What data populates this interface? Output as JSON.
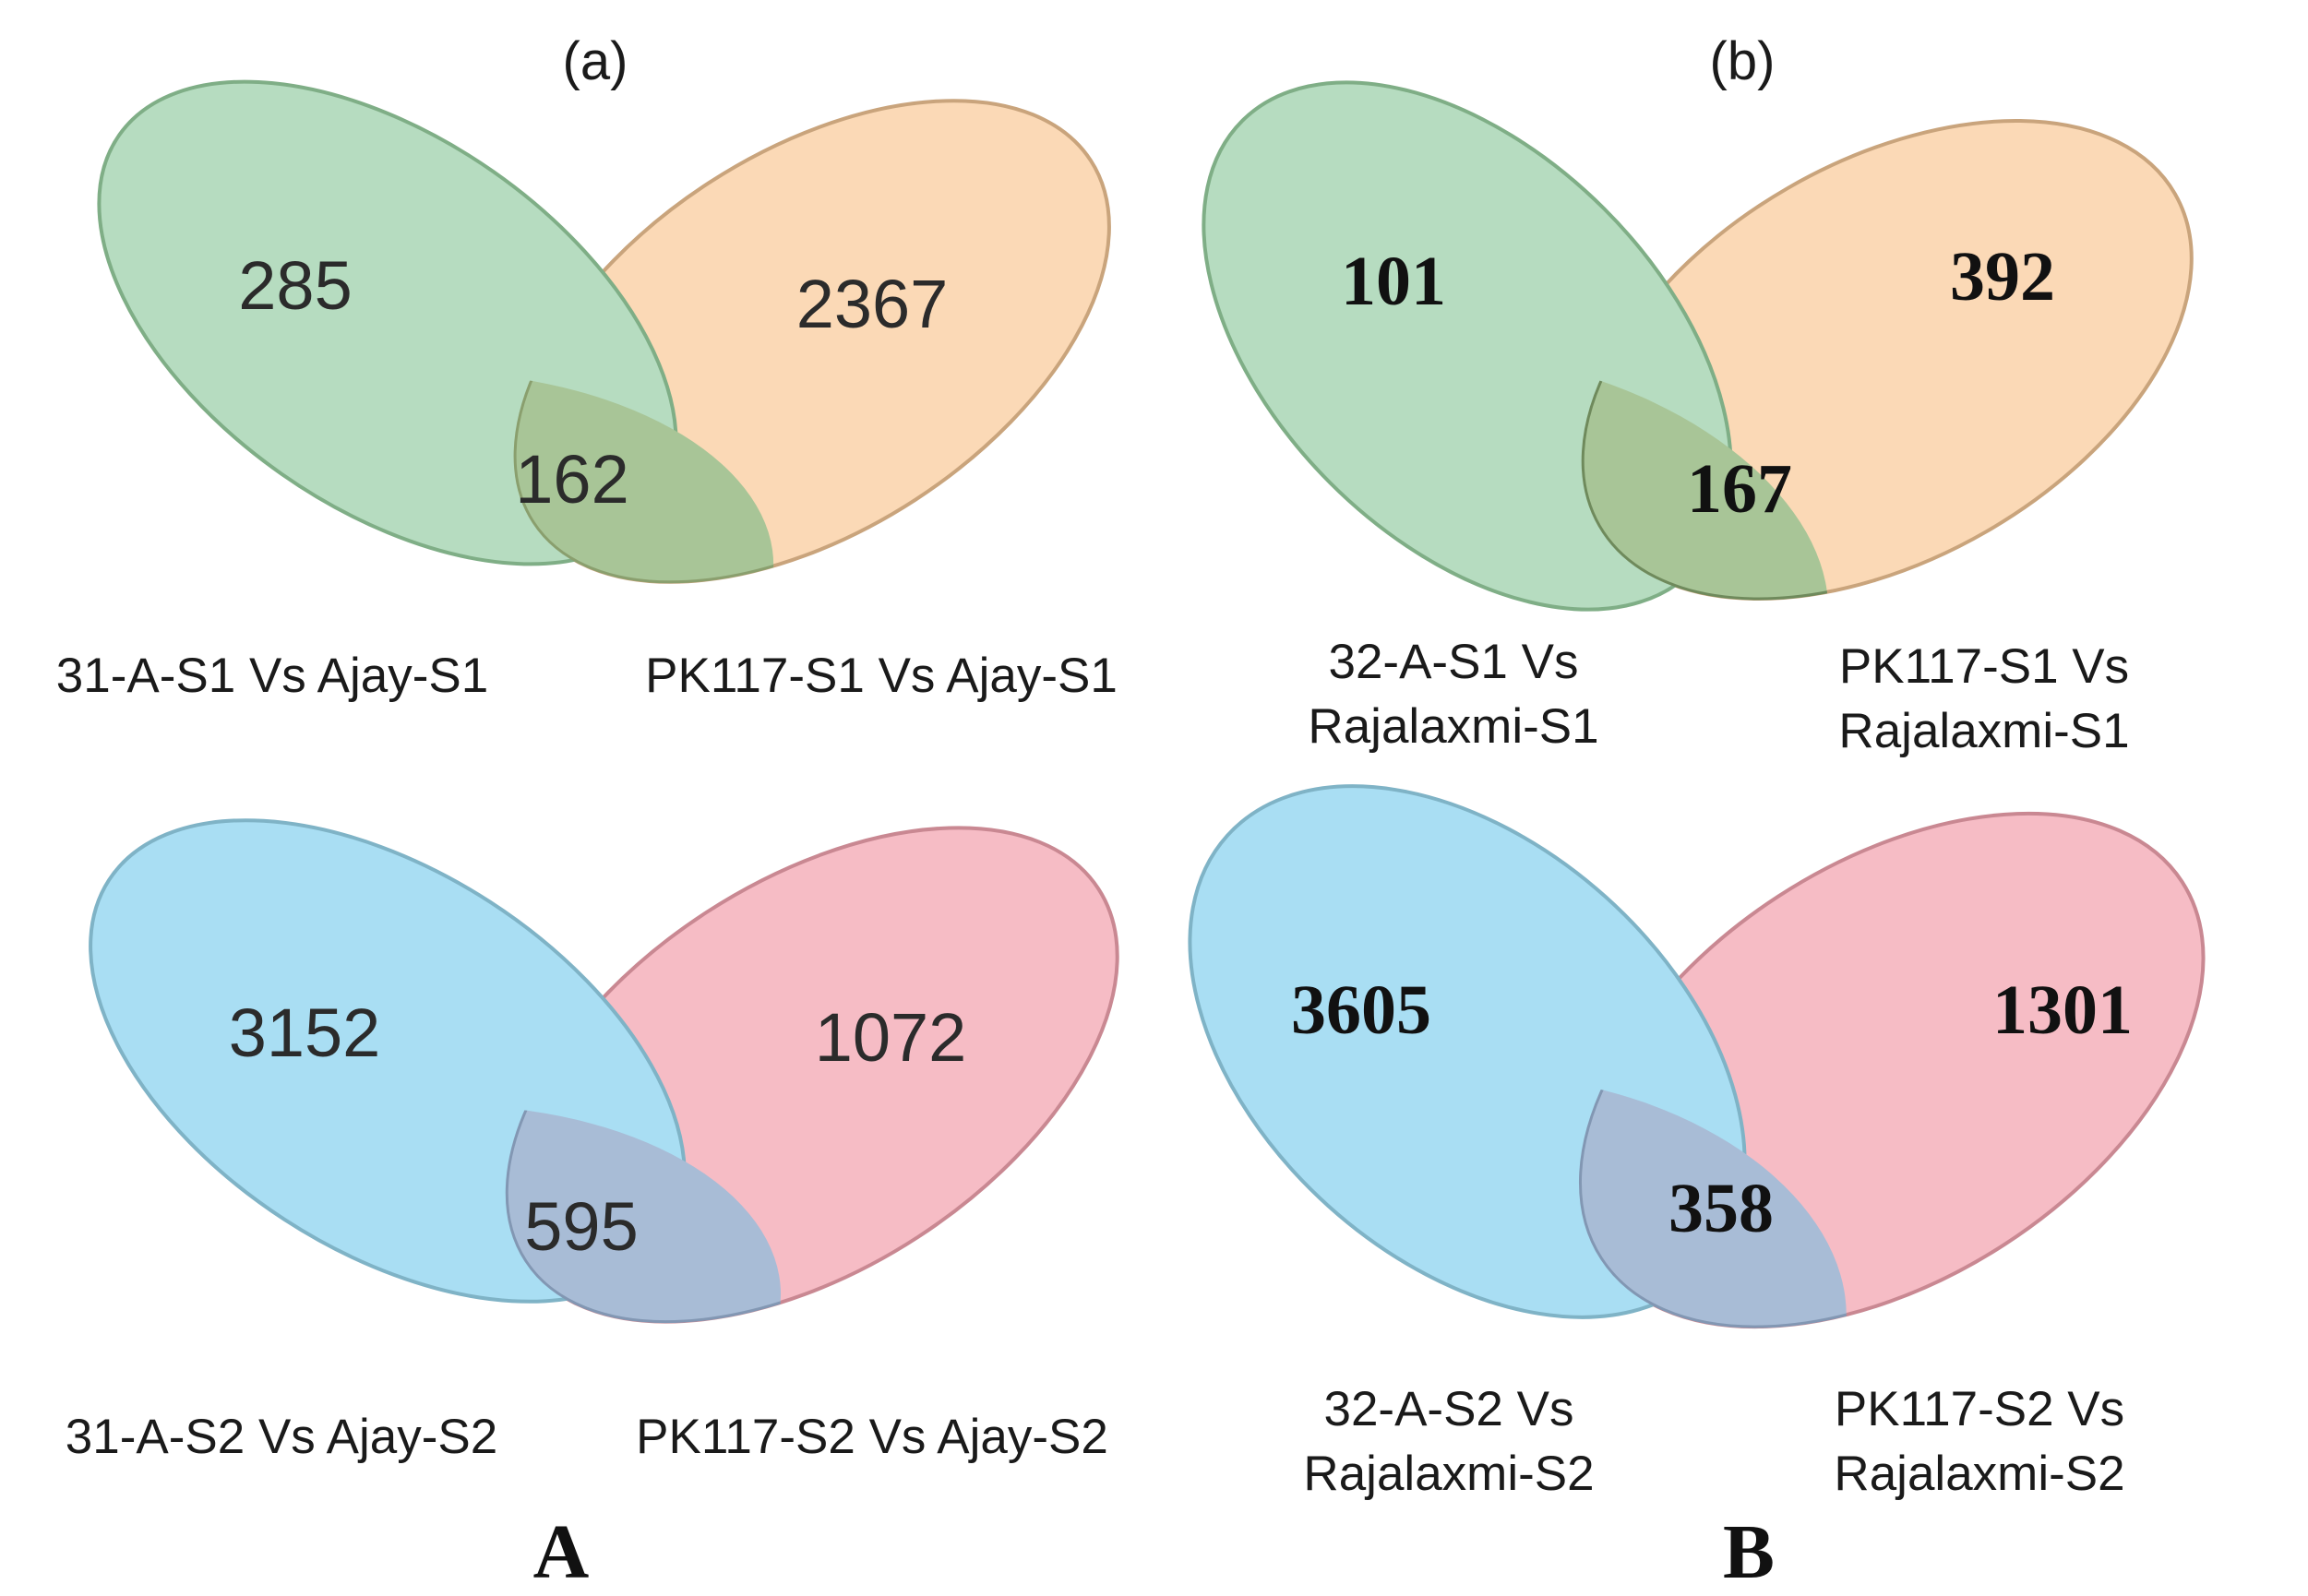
{
  "panels": {
    "a": {
      "heading": "(a)"
    },
    "b": {
      "heading": "(b)"
    }
  },
  "figure_labels": {
    "left": "A",
    "right": "B"
  },
  "colors": {
    "green_fill": "#b6dcc0",
    "green_stroke": "#7fae86",
    "orange_fill": "#fbd9b6",
    "orange_stroke": "#c9a47c",
    "blue_fill": "#a9def3",
    "blue_stroke": "#7fb3c6",
    "pink_fill": "#f6bcc5",
    "pink_stroke": "#c98892",
    "overlap_green": "#a8c597",
    "overlap_blue": "#a8bcd6"
  },
  "venns": {
    "a_s1": {
      "left_only": "285",
      "right_only": "2367",
      "overlap": "162",
      "left_label": "31-A-S1 Vs Ajay-S1",
      "right_label": "PK117-S1 Vs Ajay-S1"
    },
    "a_s2": {
      "left_only": "3152",
      "right_only": "1072",
      "overlap": "595",
      "left_label": "31-A-S2 Vs Ajay-S2",
      "right_label": "PK117-S2 Vs Ajay-S2"
    },
    "b_s1": {
      "left_only": "101",
      "right_only": "392",
      "overlap": "167",
      "left_label_l1": "32-A-S1 Vs",
      "left_label_l2": "Rajalaxmi-S1",
      "right_label_l1": "PK117-S1 Vs",
      "right_label_l2": "Rajalaxmi-S1"
    },
    "b_s2": {
      "left_only": "3605",
      "right_only": "1301",
      "overlap": "358",
      "left_label_l1": "32-A-S2 Vs",
      "left_label_l2": "Rajalaxmi-S2",
      "right_label_l1": "PK117-S2 Vs",
      "right_label_l2": "Rajalaxmi-S2"
    }
  }
}
